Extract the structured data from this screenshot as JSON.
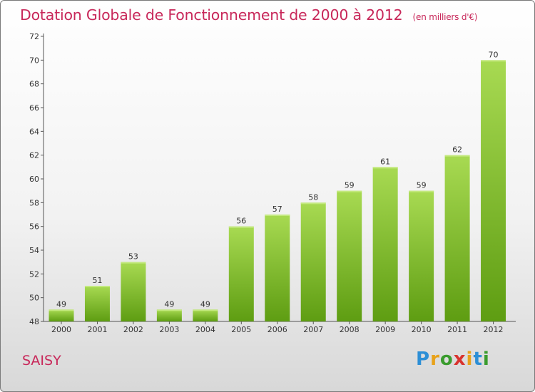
{
  "header": {
    "title": "Dotation Globale de Fonctionnement de 2000 à 2012",
    "subtitle": "(en milliers d'€)"
  },
  "footer": {
    "commune": "SAISY",
    "logo_letters": [
      "P",
      "r",
      "o",
      "x",
      "i",
      "t",
      "i"
    ],
    "logo_colors": [
      "#2d8fd6",
      "#e8a21a",
      "#3a9c2e",
      "#d8332e",
      "#e8a21a",
      "#2d8fd6",
      "#3a9c2e"
    ]
  },
  "colors": {
    "title": "#c8285a",
    "bar_top": "#a8da52",
    "bar_bottom": "#5e9d12"
  },
  "chart_data": {
    "type": "bar",
    "title": "Dotation Globale de Fonctionnement de 2000 à 2012",
    "subtitle": "(en milliers d'€)",
    "categories": [
      "2000",
      "2001",
      "2002",
      "2003",
      "2004",
      "2005",
      "2006",
      "2007",
      "2008",
      "2009",
      "2010",
      "2011",
      "2012"
    ],
    "values": [
      49,
      51,
      53,
      49,
      49,
      56,
      57,
      58,
      59,
      61,
      59,
      62,
      70
    ],
    "ylim": [
      48,
      72
    ],
    "yticks": [
      48,
      50,
      52,
      54,
      56,
      58,
      60,
      62,
      64,
      66,
      68,
      70,
      72
    ],
    "grid": false,
    "data_labels": true
  }
}
